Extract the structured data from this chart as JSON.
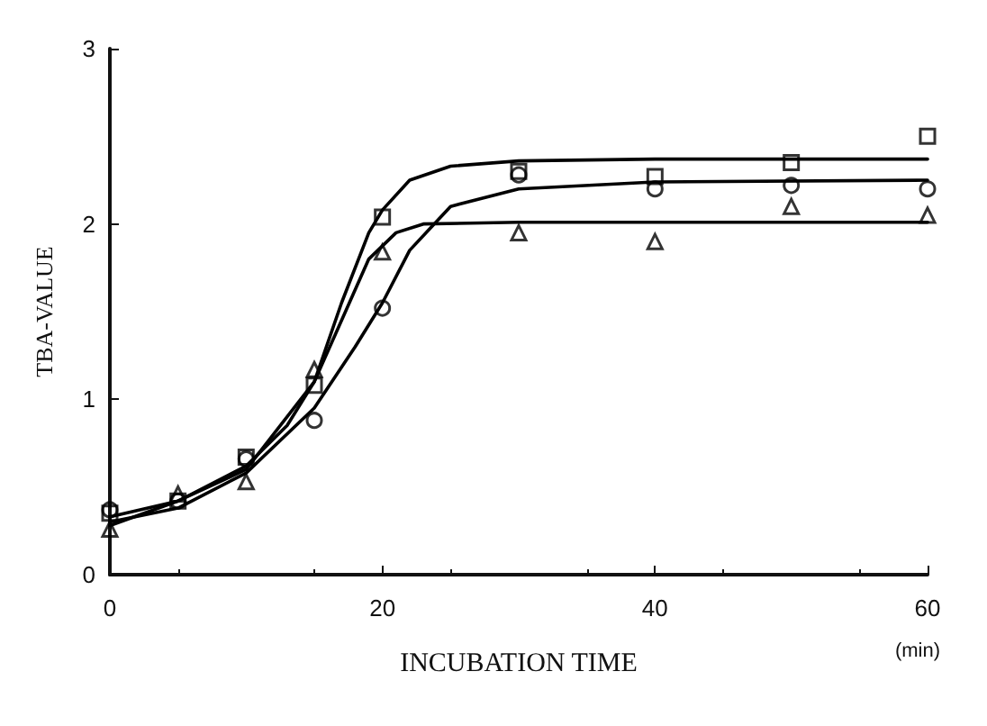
{
  "chart_data": {
    "type": "scatter",
    "xlabel": "INCUBATION TIME",
    "ylabel": "TBA-VALUE",
    "annotations": [
      "(min)"
    ],
    "xlim": [
      0,
      60
    ],
    "xticks": [
      0,
      20,
      40,
      60
    ],
    "ylim": [
      0,
      3
    ],
    "yticks": [
      0,
      1,
      2,
      3
    ],
    "grid": false,
    "series": [
      {
        "marker": "square",
        "color": "#000000",
        "x": [
          0,
          5,
          10,
          15,
          20,
          30,
          40,
          50,
          60
        ],
        "values": [
          0.35,
          0.42,
          0.67,
          1.08,
          2.04,
          2.3,
          2.27,
          2.35,
          2.5
        ]
      },
      {
        "marker": "circle",
        "color": "#000000",
        "x": [
          0,
          5,
          10,
          15,
          20,
          30,
          40,
          50,
          60
        ],
        "values": [
          0.37,
          0.42,
          0.66,
          0.88,
          1.52,
          2.28,
          2.2,
          2.22,
          2.2
        ]
      },
      {
        "marker": "triangle",
        "color": "#000000",
        "x": [
          0,
          5,
          10,
          15,
          20,
          30,
          40,
          50,
          60
        ],
        "values": [
          0.26,
          0.46,
          0.53,
          1.17,
          1.84,
          1.95,
          1.9,
          2.1,
          2.05
        ]
      },
      {
        "type": "line",
        "marker": "none",
        "line_style": "solid",
        "color": "#000000",
        "x": [
          0,
          5,
          10,
          13,
          15,
          17,
          19,
          20,
          22,
          25,
          30,
          40,
          60
        ],
        "values": [
          0.33,
          0.42,
          0.62,
          0.85,
          1.1,
          1.55,
          1.95,
          2.08,
          2.25,
          2.33,
          2.36,
          2.37,
          2.37
        ]
      },
      {
        "type": "line",
        "marker": "none",
        "line_style": "solid",
        "color": "#000000",
        "x": [
          0,
          5,
          10,
          15,
          18,
          20,
          22,
          25,
          30,
          40,
          60
        ],
        "values": [
          0.3,
          0.38,
          0.58,
          0.95,
          1.3,
          1.55,
          1.85,
          2.1,
          2.2,
          2.24,
          2.25
        ]
      },
      {
        "type": "line",
        "marker": "none",
        "line_style": "solid",
        "color": "#000000",
        "x": [
          0,
          5,
          10,
          15,
          17,
          19,
          21,
          23,
          30,
          60
        ],
        "values": [
          0.28,
          0.42,
          0.6,
          1.1,
          1.45,
          1.8,
          1.95,
          2.0,
          2.01,
          2.01
        ]
      }
    ]
  }
}
